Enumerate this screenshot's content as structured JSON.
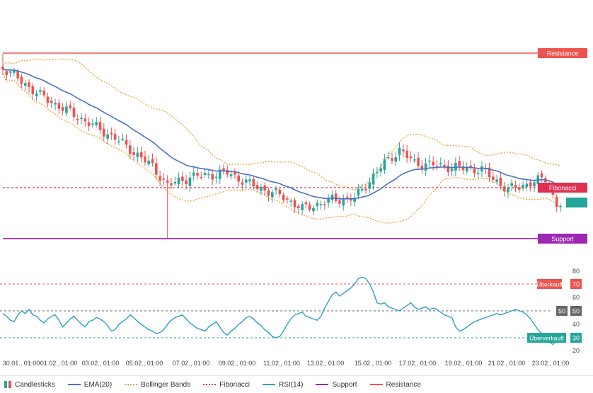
{
  "chart_data": {
    "type": "line",
    "x_ticks": [
      "30.01., 01:00",
      "01.02., 01:00",
      "03.02., 01:00",
      "05.02., 01:00",
      "07.02., 01:00",
      "09.02., 01:00",
      "11.02., 01:00",
      "13.02., 01:00",
      "15.02., 01:00",
      "17.02., 01:00",
      "19.02., 01:00",
      "21.02., 01:00",
      "23.02., 01:00"
    ],
    "rsi_ticks": [
      80,
      70,
      60,
      50,
      40,
      30,
      20
    ],
    "rsi_values": [
      48,
      46,
      43,
      42,
      47,
      50,
      48,
      51,
      47,
      46,
      43,
      41,
      44,
      46,
      47,
      43,
      38,
      41,
      44,
      46,
      43,
      40,
      38,
      42,
      43,
      45,
      44,
      42,
      39,
      35,
      36,
      40,
      42,
      44,
      47,
      45,
      42,
      40,
      38,
      36,
      35,
      33,
      34,
      36,
      40,
      43,
      45,
      46,
      47,
      44,
      41,
      39,
      37,
      36,
      35,
      38,
      40,
      42,
      38,
      34,
      32,
      35,
      37,
      40,
      42,
      45,
      46,
      44,
      41,
      39,
      36,
      34,
      31,
      30,
      31,
      35,
      40,
      44,
      47,
      48,
      49,
      46,
      45,
      44,
      43,
      46,
      52,
      57,
      62,
      64,
      61,
      63,
      65,
      67,
      70,
      74,
      75,
      74,
      70,
      64,
      56,
      55,
      56,
      53,
      52,
      51,
      50,
      52,
      54,
      56,
      53,
      51,
      52,
      53,
      51,
      52,
      51,
      49,
      47,
      46,
      45,
      38,
      35,
      36,
      38,
      40,
      42,
      43,
      44,
      45,
      46,
      47,
      48,
      47,
      48,
      49,
      50,
      51,
      50,
      49,
      47,
      44,
      40,
      36,
      33,
      31,
      27,
      25,
      28,
      30
    ],
    "annotations": {
      "resistance": "Resistance",
      "fibonacci": "Fibonacci",
      "support": "Support",
      "overbought": "Überkauft",
      "overbought_value": "70",
      "midline": "50",
      "midline_value": "50",
      "oversold": "Überverkauft",
      "oversold_value": "30"
    },
    "legend": [
      "Candlesticks",
      "EMA(20)",
      "Bollinger Bands",
      "Fibonacci",
      "RSI(14)",
      "Support",
      "Resistance"
    ],
    "colors": {
      "up": "#26a69a",
      "down": "#ef5350",
      "ema": "#4a72c8",
      "bollinger": "#f0a030",
      "fibonacci": "#e03050",
      "rsi": "#2aa0c8",
      "support": "#9c27b0",
      "resistance": "#ef5350",
      "midline": "#666666",
      "last_price": "#26a69a"
    }
  }
}
